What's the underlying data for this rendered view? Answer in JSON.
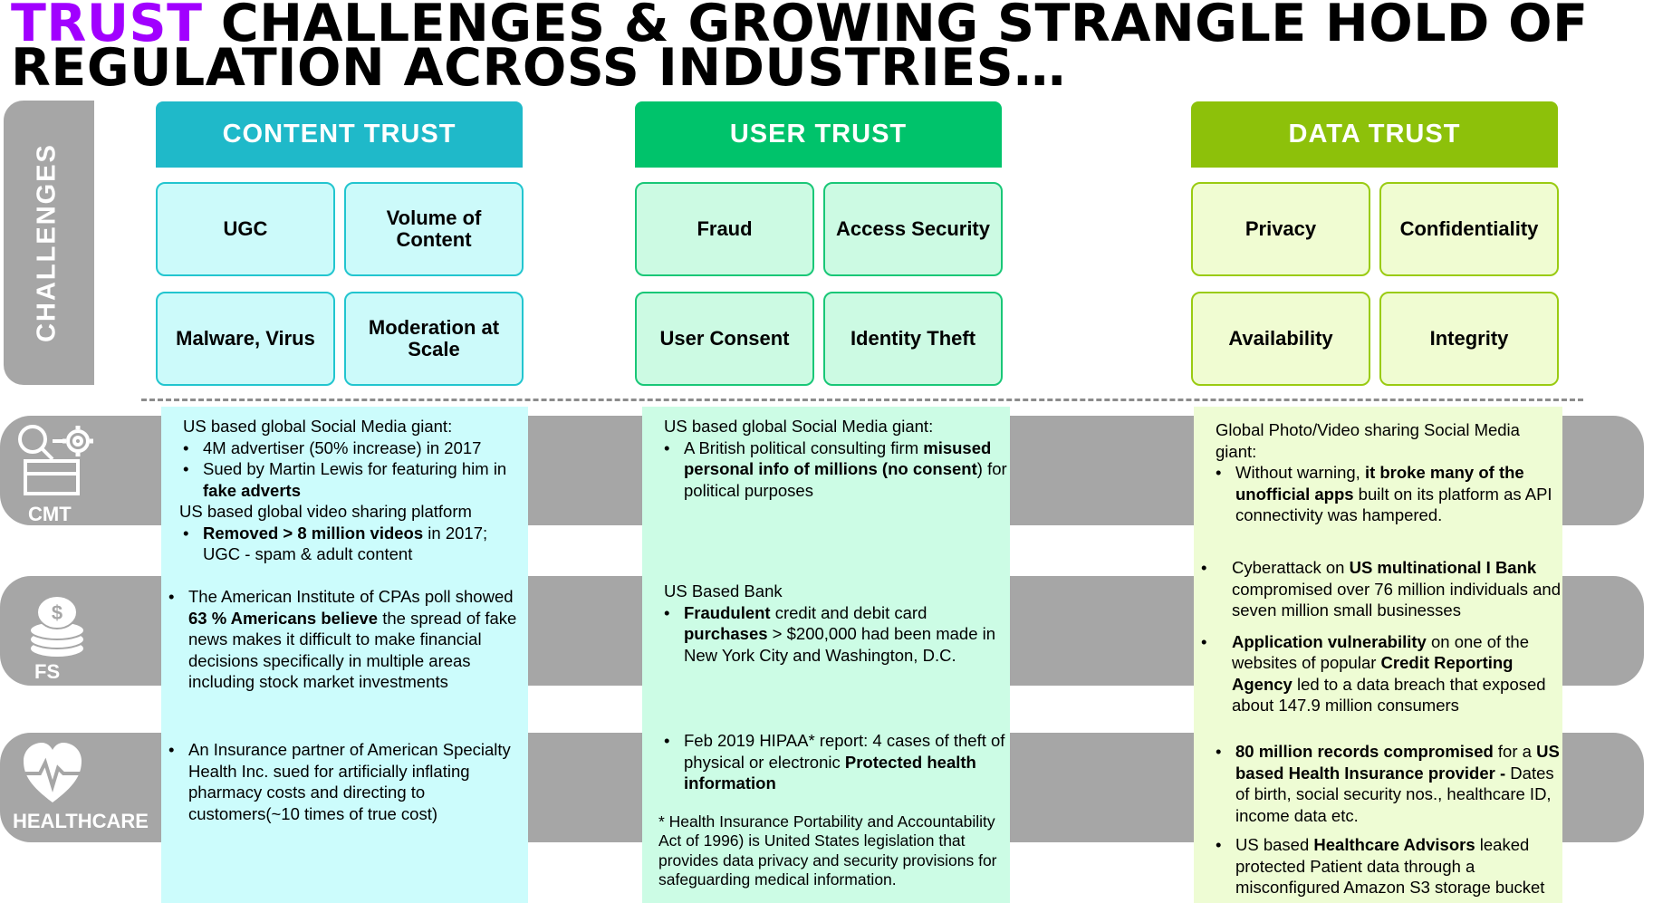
{
  "title": {
    "highlight": "TRUST",
    "line1_rest": "CHALLENGES & GROWING STRANGLE HOLD OF",
    "line2": "REGULATION ACROSS INDUSTRIES…"
  },
  "colors": {
    "accent_purple": "#a100ff",
    "content_trust": "#1fb9c9",
    "user_trust": "#00c36b",
    "data_trust": "#8dc10a",
    "gray": "#a6a6a6"
  },
  "side_label": "CHALLENGES",
  "columns": [
    {
      "header": "CONTENT TRUST",
      "challenges": [
        "UGC",
        "Volume of Content",
        "Malware, Virus",
        "Moderation at Scale"
      ]
    },
    {
      "header": "USER TRUST",
      "challenges": [
        "Fraud",
        "Access Security",
        "User Consent",
        "Identity Theft"
      ]
    },
    {
      "header": "DATA TRUST",
      "challenges": [
        "Privacy",
        "Confidentiality",
        "Availability",
        "Integrity"
      ]
    }
  ],
  "rows": [
    {
      "label": "CMT",
      "icon": "search-gear-icon"
    },
    {
      "label": "FS",
      "icon": "coins-stack-icon"
    },
    {
      "label": "HEALTHCARE",
      "icon": "heart-pulse-icon"
    }
  ],
  "content": {
    "c1_cmt_intro": "US based global Social Media giant:",
    "c1_cmt_b1": "4M advertiser (50% increase) in 2017",
    "c1_cmt_b2a": "Sued by Martin Lewis for featuring him in ",
    "c1_cmt_b2b": "fake adverts",
    "c1_cmt_intro2": "US based global video sharing platform",
    "c1_cmt_b3a": "Removed > 8 million videos",
    "c1_cmt_b3b": " in 2017; UGC - spam & adult content",
    "c1_fs_a": "The American Institute of CPAs poll showed ",
    "c1_fs_b": "63 % Americans believe",
    "c1_fs_c": " the spread of fake news makes it difficult to make financial decisions specifically in multiple areas including stock market investments",
    "c1_hc": "An Insurance partner of  American Specialty Health Inc. sued for artificially inflating pharmacy costs and directing to customers(~10 times of true cost)",
    "c2_cmt_intro": "US based global Social Media giant:",
    "c2_cmt_a": "A British political consulting firm ",
    "c2_cmt_b": "misused personal info of millions (no consent",
    "c2_cmt_c": ") for political purposes",
    "c2_fs_intro": "US Based Bank",
    "c2_fs_a": "Fraudulent",
    "c2_fs_b": " credit and debit card ",
    "c2_fs_c": "purchases",
    "c2_fs_d": " > $200,000 had been made in New York City and Washington, D.C.",
    "c2_hc_a": "Feb 2019 HIPAA* report: 4 cases of theft of physical or electronic ",
    "c2_hc_b": "Protected health information",
    "c2_hc_note": "* Health Insurance Portability and Accountability Act of 1996) is United States legislation that provides data privacy and security provisions for safeguarding medical information.",
    "c3_cmt_intro": "Global Photo/Video sharing Social Media giant:",
    "c3_cmt_a": "Without warning, ",
    "c3_cmt_b": "it broke many of the unofficial apps",
    "c3_cmt_c": " built on its platform as API connectivity was hampered.",
    "c3_fs1_a": "Cyberattack on ",
    "c3_fs1_b": "US multinational I Bank",
    "c3_fs1_c": " compromised over 76 million individuals and seven million small businesses",
    "c3_fs2_a": "Application vulnerability",
    "c3_fs2_b": " on one of the websites of popular ",
    "c3_fs2_c": "Credit Reporting Agency",
    "c3_fs2_d": " led to a data breach that exposed about 147.9 million consumers",
    "c3_hc1_a": "80 million records compromised",
    "c3_hc1_b": " for a ",
    "c3_hc1_c": "US based Health Insurance provider -",
    "c3_hc1_d": " Dates of birth, social security nos., healthcare ID, income data etc.",
    "c3_hc2_a": "US based ",
    "c3_hc2_b": "Healthcare Advisors",
    "c3_hc2_c": " leaked protected Patient data through a misconfigured Amazon S3 storage bucket"
  }
}
